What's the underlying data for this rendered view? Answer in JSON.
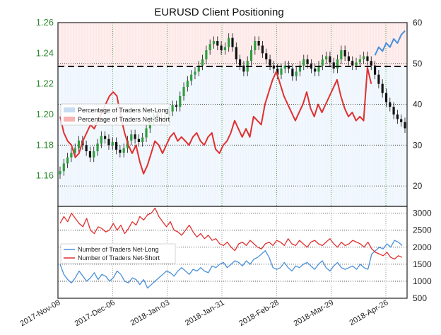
{
  "chart_data": [
    {
      "type": "candlestick",
      "title": "EURUSD Client Positioning",
      "x_dates": [
        "2017-Nov-08",
        "2017-Dec-06",
        "2018-Jan-03",
        "2018-Jan-31",
        "2018-Feb-28",
        "2018-Mar-29",
        "2018-Apr-26"
      ],
      "y_left_ticks": [
        "1.26",
        "1.24",
        "1.22",
        "1.20",
        "1.18",
        "1.16"
      ],
      "y_left_range": [
        1.14,
        1.26
      ],
      "y_right_ticks": [
        "60",
        "50",
        "40",
        "30",
        "20"
      ],
      "y_right_range": [
        15,
        60
      ],
      "price_close": [
        1.163,
        1.168,
        1.172,
        1.175,
        1.178,
        1.183,
        1.18,
        1.176,
        1.172,
        1.176,
        1.181,
        1.186,
        1.184,
        1.18,
        1.182,
        1.177,
        1.175,
        1.178,
        1.183,
        1.187,
        1.184,
        1.182,
        1.185,
        1.191,
        1.196,
        1.2,
        1.198,
        1.196,
        1.199,
        1.202,
        1.206,
        1.205,
        1.212,
        1.218,
        1.222,
        1.226,
        1.228,
        1.232,
        1.236,
        1.242,
        1.246,
        1.248,
        1.245,
        1.242,
        1.244,
        1.25,
        1.244,
        1.236,
        1.232,
        1.228,
        1.235,
        1.242,
        1.248,
        1.245,
        1.24,
        1.236,
        1.232,
        1.23,
        1.226,
        1.23,
        1.232,
        1.23,
        1.225,
        1.228,
        1.232,
        1.236,
        1.233,
        1.23,
        1.228,
        1.232,
        1.236,
        1.238,
        1.234,
        1.23,
        1.236,
        1.242,
        1.238,
        1.235,
        1.232,
        1.234,
        1.236,
        1.238,
        1.235,
        1.232,
        1.226,
        1.22,
        1.214,
        1.208,
        1.205,
        1.2,
        1.197,
        1.195,
        1.191
      ],
      "legend_top": [
        "Percentage of Traders Net-Long",
        "Percentage of Traders Net-Short"
      ],
      "series_top": [
        {
          "name": "Percentage of Traders Net-Long",
          "color": "#4a90d9",
          "x_start_index": 84,
          "values": [
            52,
            54,
            53,
            55,
            54,
            56,
            55,
            57,
            58
          ]
        },
        {
          "name": "Percentage of Traders Net-Short",
          "color": "#e03030",
          "values": [
            37,
            33,
            31,
            30,
            27,
            28,
            31,
            33,
            35,
            34,
            36,
            38,
            40,
            42,
            43,
            42,
            37,
            33,
            30,
            28,
            30,
            26,
            23,
            25,
            28,
            31,
            30,
            28,
            30,
            32,
            33,
            31,
            32,
            31,
            30,
            32,
            33,
            31,
            30,
            32,
            33,
            29,
            28,
            30,
            31,
            33,
            36,
            34,
            32,
            34,
            32,
            37,
            36,
            35,
            40,
            43,
            46,
            48,
            45,
            42,
            40,
            38,
            36,
            38,
            40,
            43,
            39,
            37,
            40,
            38,
            40,
            42,
            44,
            46,
            42,
            39,
            37,
            38,
            36,
            37,
            36,
            49,
            45
          ]
        }
      ]
    },
    {
      "type": "line",
      "y_right_ticks": [
        "3000",
        "2500",
        "2000",
        "1500",
        "1000",
        "500"
      ],
      "y_right_range": [
        500,
        3200
      ],
      "legend": [
        "Number of Traders Net-Long",
        "Number of Traders Net-Short"
      ],
      "series": [
        {
          "name": "Number of Traders Net-Long",
          "color": "#4a90d9",
          "values": [
            1500,
            1200,
            1050,
            950,
            1100,
            1300,
            1150,
            1000,
            1100,
            1250,
            1050,
            1200,
            1150,
            1000,
            1100,
            1300,
            1200,
            1000,
            950,
            1100,
            1050,
            900,
            1050,
            800,
            900,
            1000,
            1100,
            1200,
            1300,
            1250,
            1150,
            1300,
            1400,
            1300,
            1200,
            1350,
            1300,
            1400,
            1300,
            1250,
            1450,
            1400,
            1500,
            1550,
            1400,
            1500,
            1600,
            1550,
            1450,
            1600,
            1500,
            1650,
            1700,
            1800,
            1900,
            1700,
            1400,
            1350,
            1400,
            1550,
            1400,
            1300,
            1450,
            1400,
            1500,
            1550,
            1450,
            1350,
            1500,
            1600,
            1400,
            1300,
            1450,
            1550,
            1400,
            1350,
            1400,
            1450,
            1350,
            1500,
            1400,
            1350,
            1800,
            1900,
            2000,
            1950,
            2100,
            2000,
            2200,
            2150,
            2050
          ]
        },
        {
          "name": "Number of Traders Net-Short",
          "color": "#e03030",
          "values": [
            2700,
            2900,
            2750,
            3000,
            2850,
            2700,
            2600,
            2850,
            2500,
            2400,
            2600,
            2550,
            2450,
            2500,
            2700,
            2500,
            2650,
            2400,
            2550,
            2750,
            2650,
            2900,
            2800,
            2950,
            3000,
            3150,
            2900,
            2750,
            2600,
            2750,
            2500,
            2450,
            2350,
            2500,
            2650,
            2450,
            2300,
            2400,
            2250,
            2350,
            2200,
            2250,
            2100,
            2050,
            2150,
            2000,
            1900,
            2100,
            2150,
            2050,
            2200,
            2100,
            2000,
            1950,
            2100,
            2150,
            2050,
            2200,
            2150,
            2050,
            2250,
            2100,
            2050,
            2200,
            2100,
            2000,
            2150,
            2200,
            2100,
            2050,
            2150,
            2250,
            2100,
            2000,
            2150,
            2050,
            2100,
            2200,
            2150,
            2100,
            2000,
            2150,
            1950,
            1850,
            1800,
            1750,
            1850,
            1700,
            1650,
            1750,
            1700
          ]
        }
      ]
    }
  ]
}
